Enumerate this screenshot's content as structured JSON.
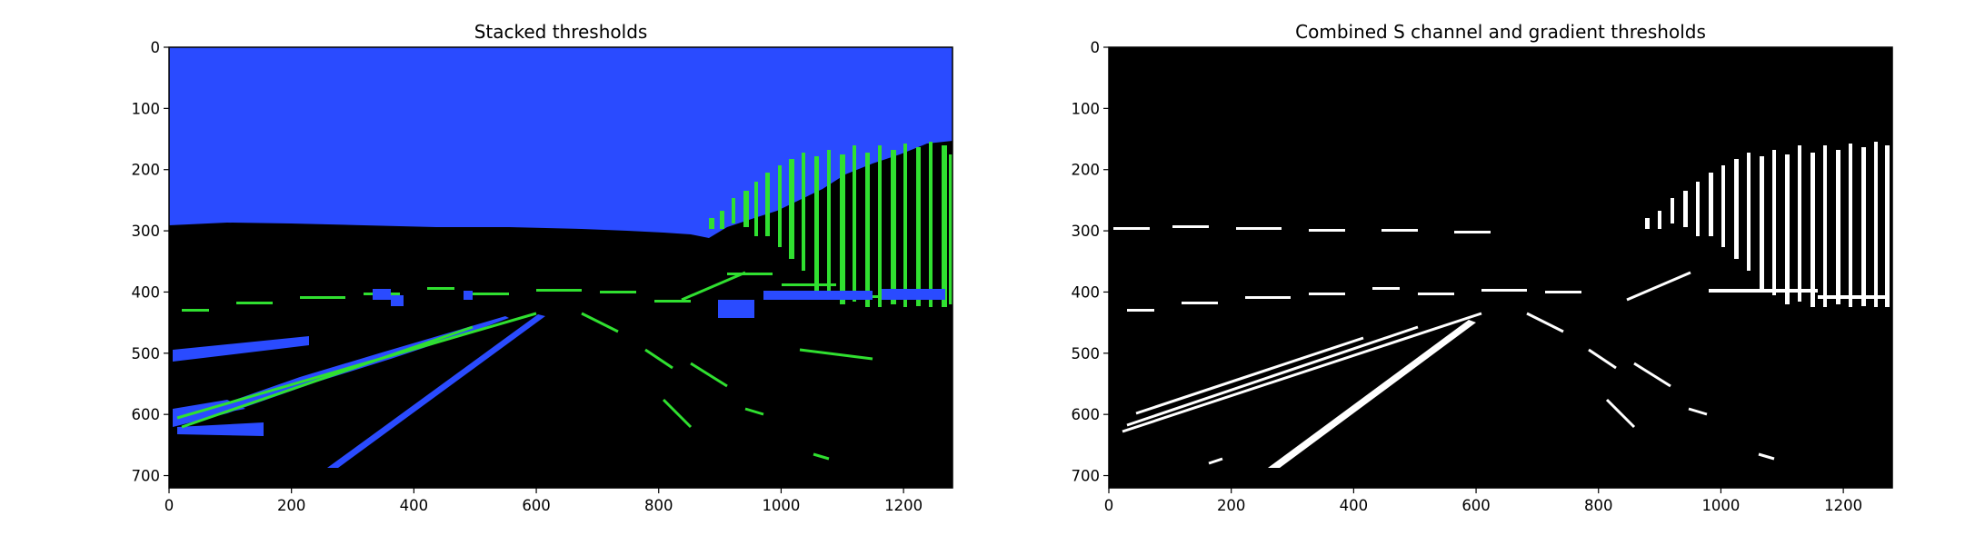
{
  "chart_data": [
    {
      "type": "image",
      "title": "Stacked thresholds",
      "description_colors": {
        "background": "#000000",
        "s_channel": "#2a4bff",
        "gradient": "#30e030"
      },
      "xlim": [
        0,
        1280
      ],
      "ylim": [
        720,
        0
      ],
      "xticks": [
        0,
        200,
        400,
        600,
        800,
        1000,
        1200
      ],
      "yticks": [
        0,
        100,
        200,
        300,
        400,
        500,
        600,
        700
      ],
      "grid": false
    },
    {
      "type": "image",
      "title": "Combined S channel and gradient thresholds",
      "description_colors": {
        "background": "#000000",
        "binary": "#ffffff"
      },
      "xlim": [
        0,
        1280
      ],
      "ylim": [
        720,
        0
      ],
      "xticks": [
        0,
        200,
        400,
        600,
        800,
        1000,
        1200
      ],
      "yticks": [
        0,
        100,
        200,
        300,
        400,
        500,
        600,
        700
      ],
      "grid": false
    }
  ]
}
